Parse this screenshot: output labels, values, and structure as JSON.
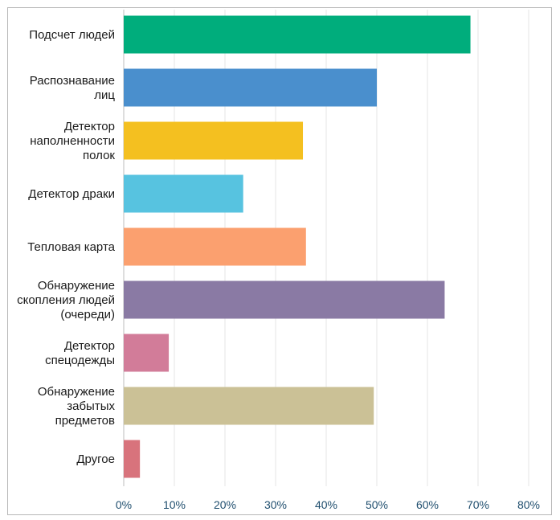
{
  "chart_data": {
    "type": "bar",
    "orientation": "horizontal",
    "categories": [
      [
        "Подсчет людей"
      ],
      [
        "Распознавание",
        "лиц"
      ],
      [
        "Детектор",
        "наполненности",
        "полок"
      ],
      [
        "Детектор драки"
      ],
      [
        "Тепловая карта"
      ],
      [
        "Обнаружение",
        "скопления людей",
        "(очереди)"
      ],
      [
        "Детектор",
        "спецодежды"
      ],
      [
        "Обнаружение",
        "забытых",
        "предметов"
      ],
      [
        "Другое"
      ]
    ],
    "values": [
      68.5,
      50,
      35.4,
      23.6,
      36,
      63.4,
      8.9,
      49.4,
      3.2
    ],
    "colors": [
      "#00ad7c",
      "#4a8fcd",
      "#f4c020",
      "#57c3e0",
      "#fba06f",
      "#8a7aa4",
      "#d27c99",
      "#cbc196",
      "#d8737c"
    ],
    "xlim": [
      0,
      80
    ],
    "xticks": [
      "0%",
      "10%",
      "20%",
      "30%",
      "40%",
      "50%",
      "60%",
      "70%",
      "80%"
    ],
    "grid": true,
    "title": "",
    "xlabel": "",
    "ylabel": ""
  }
}
